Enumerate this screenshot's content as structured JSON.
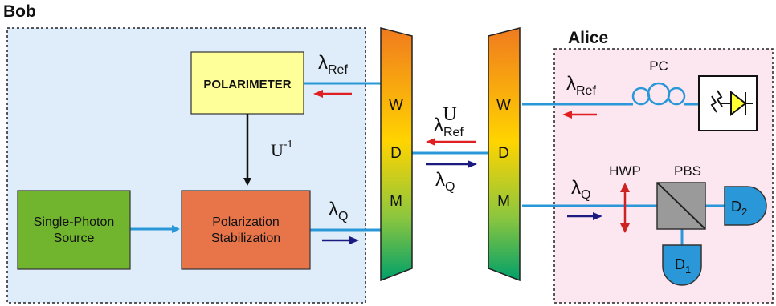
{
  "bob": {
    "title": "Bob"
  },
  "alice": {
    "title": "Alice"
  },
  "polarimeter": {
    "label": "POLARIMETER"
  },
  "source": {
    "line1": "Single-Photon",
    "line2": "Source"
  },
  "stabilization": {
    "line1": "Polarization",
    "line2": "Stabilization"
  },
  "wdm": {
    "letters": [
      "W",
      "D",
      "M"
    ]
  },
  "symbols": {
    "lambda": "λ",
    "ref_sub": "Ref",
    "q_sub": "Q",
    "u": "U",
    "u_inv": "U",
    "u_inv_sup": "-1"
  },
  "alice_components": {
    "pc": "PC",
    "hwp": "HWP",
    "pbs": "PBS",
    "d2": "D",
    "d2_sub": "2",
    "d1": "D",
    "d1_sub": "1"
  },
  "colors": {
    "bob_bg": "#deedf9",
    "alice_bg": "#fce6ef",
    "polarimeter": "#ffff99",
    "source": "#71b52f",
    "stabilization": "#e8754a",
    "fiber": "#2a98d8",
    "ref_arrow": "#e02020",
    "q_arrow": "#1a1a80",
    "hwp": "#cc2222"
  }
}
